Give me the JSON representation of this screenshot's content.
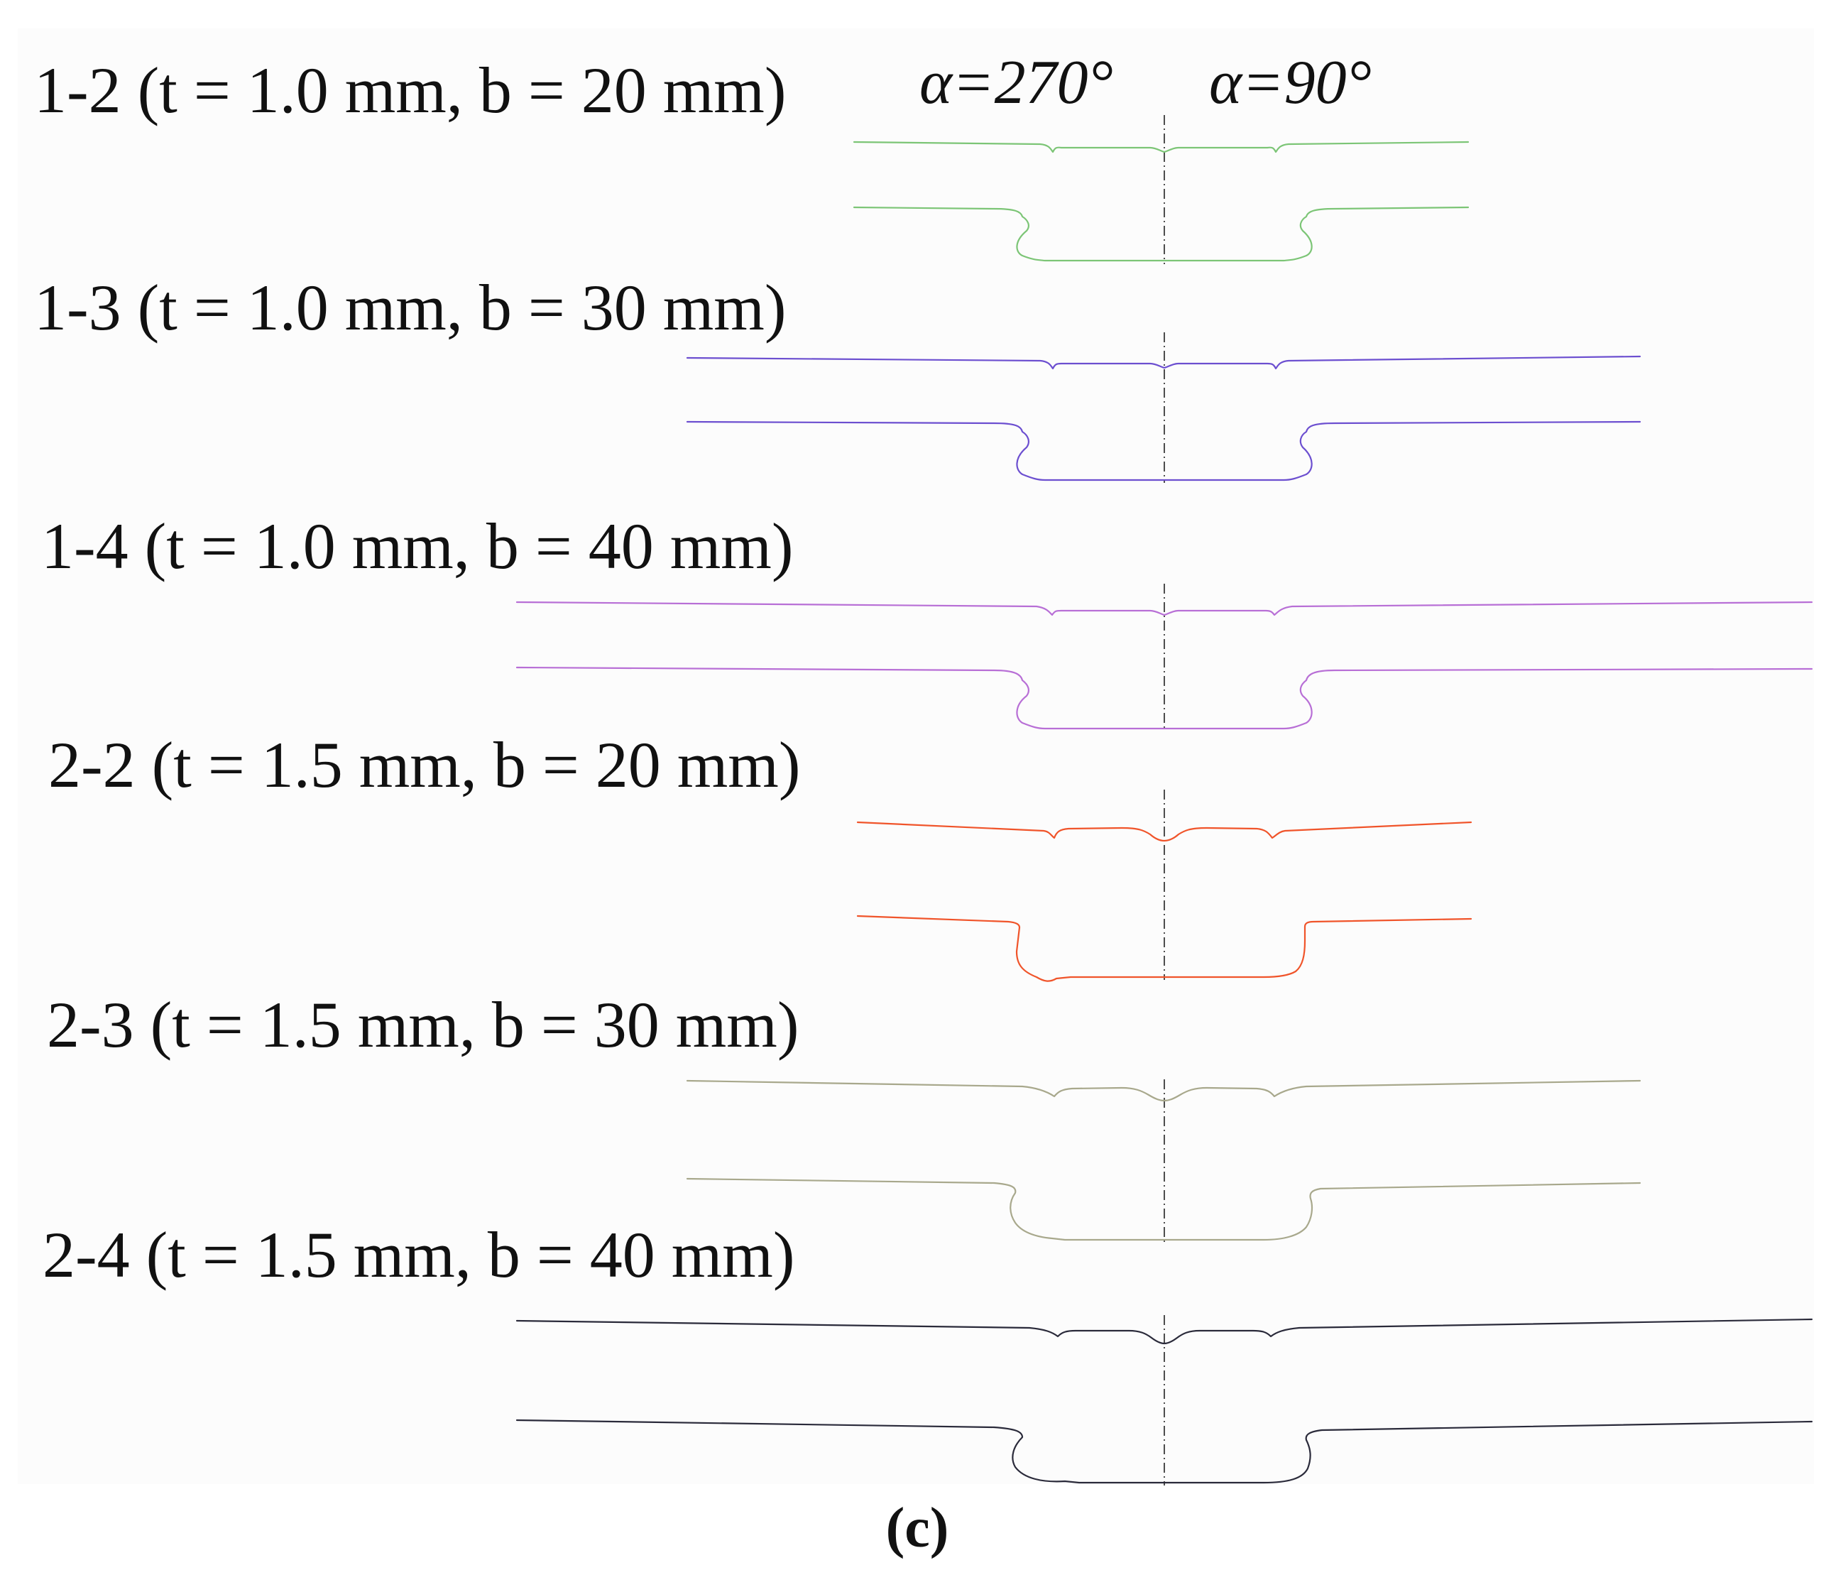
{
  "angle_labels": {
    "left": "α=270°",
    "right": "α=90°"
  },
  "subfigure_label": "(c)",
  "specimens": [
    {
      "label": "1-2 (t = 1.0 mm, b = 20 mm)",
      "color": "#7cc576"
    },
    {
      "label": "1-3 (t = 1.0 mm, b = 30 mm)",
      "color": "#6c4fd0"
    },
    {
      "label": "1-4 (t = 1.0 mm, b = 40 mm)",
      "color": "#b86fd6"
    },
    {
      "label": "2-2 (t = 1.5 mm, b = 20 mm)",
      "color": "#f0542a"
    },
    {
      "label": "2-3 (t = 1.5 mm, b = 30 mm)",
      "color": "#a8a88c"
    },
    {
      "label": "2-4 (t = 1.5 mm, b = 40 mm)",
      "color": "#2a2a3a"
    }
  ],
  "icons": {
    "profile": "cross-section-profile-curve",
    "axis": "dash-dot-symmetry-axis"
  }
}
